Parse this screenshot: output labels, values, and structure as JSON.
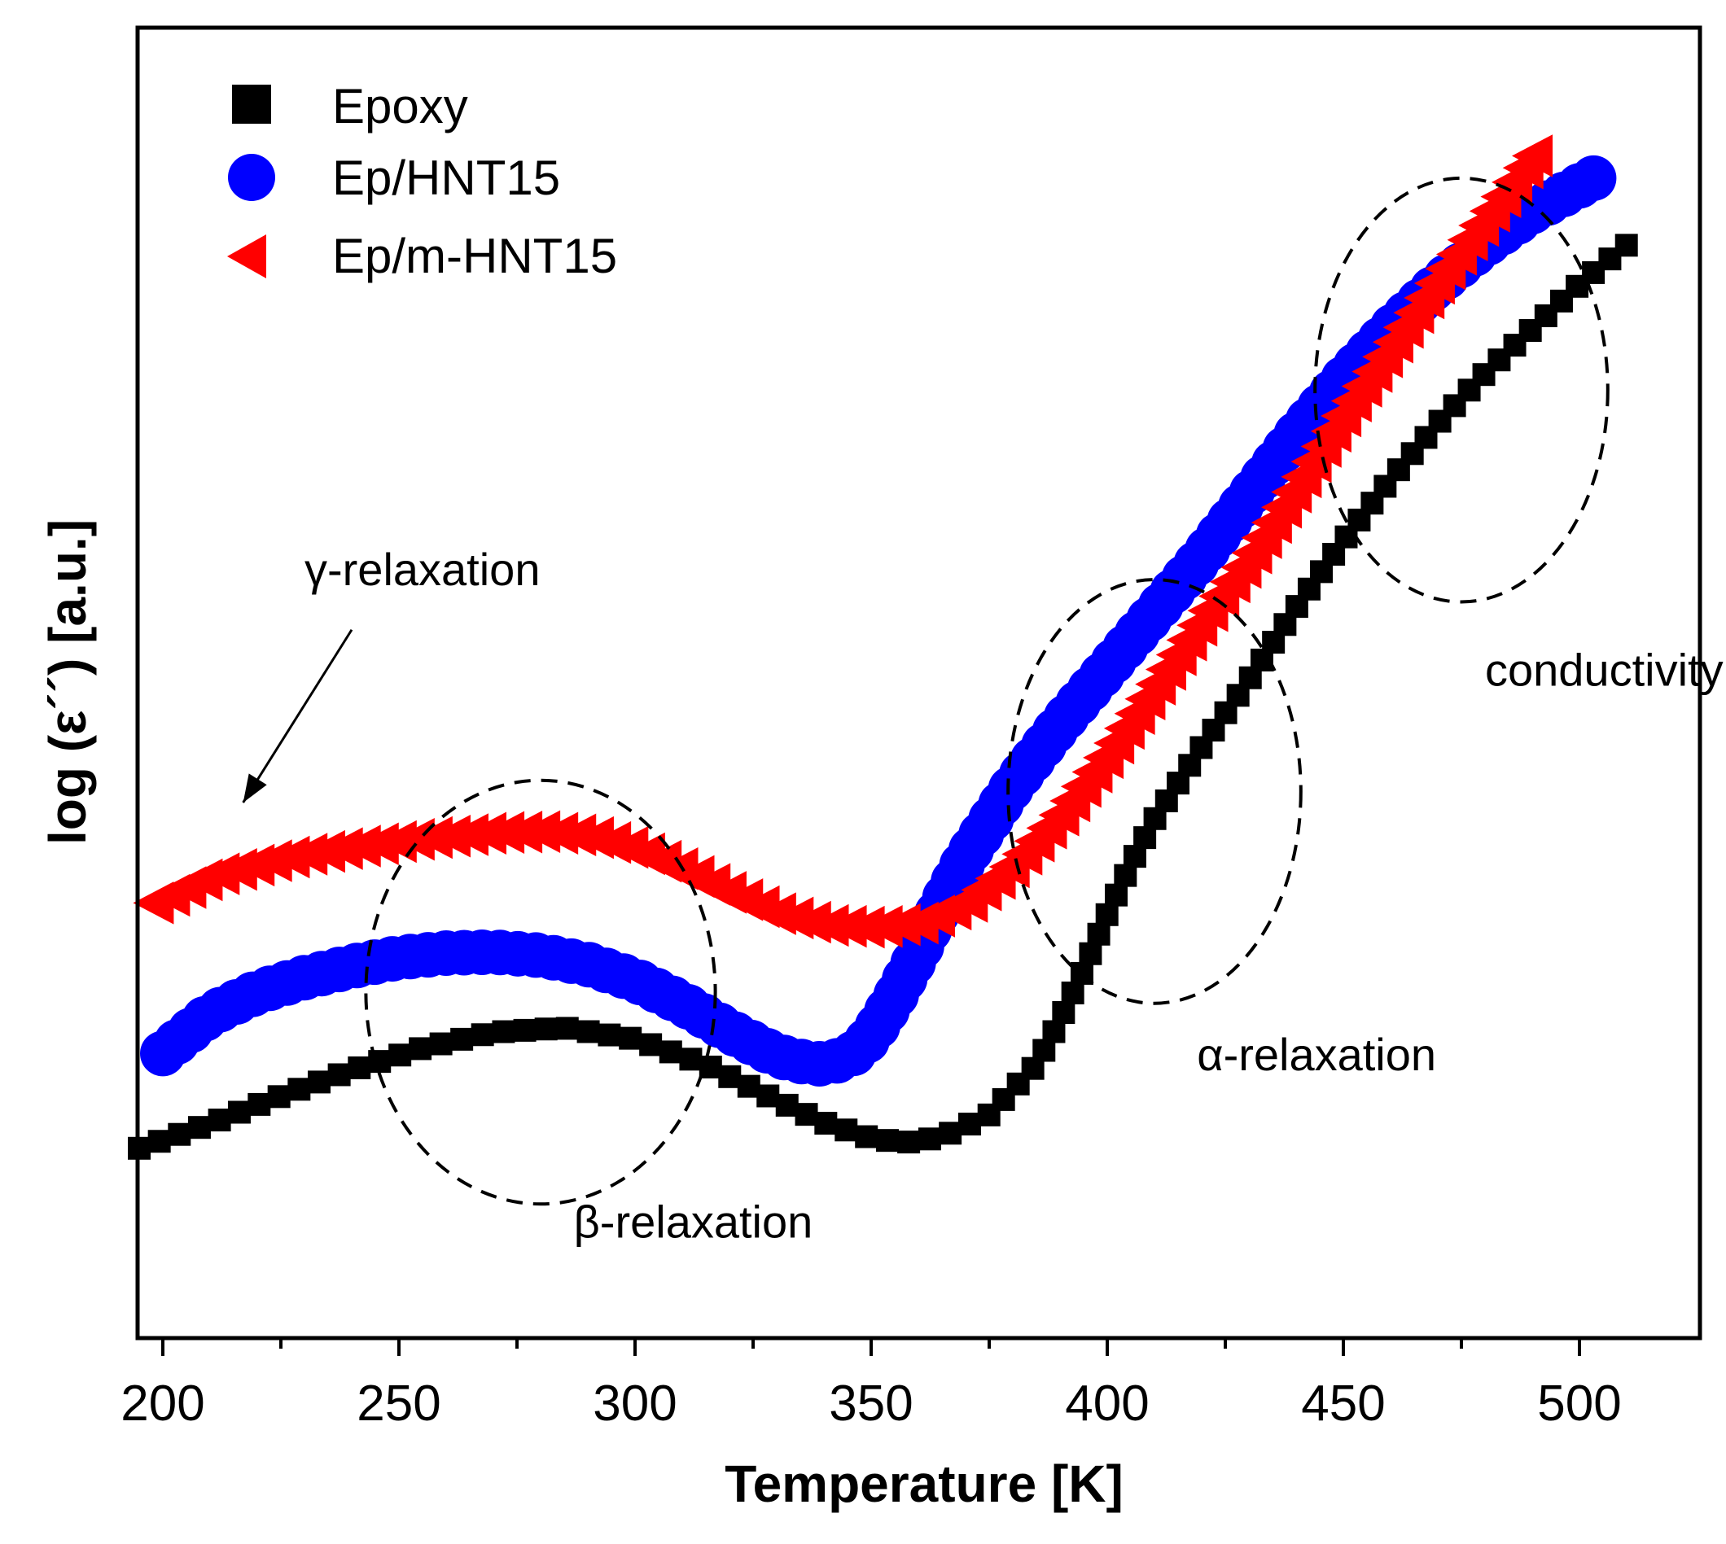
{
  "chart_data": {
    "type": "scatter",
    "title": "",
    "xlabel": "Temperature [K]",
    "ylabel": "log (ε´´) [a.u.]",
    "xlim": [
      195,
      525
    ],
    "ylim": [
      0,
      100
    ],
    "y_tick_labels_shown": false,
    "x_ticks": [
      200,
      250,
      300,
      350,
      400,
      450,
      500
    ],
    "x_tick_labels": [
      "200",
      "250",
      "300",
      "350",
      "400",
      "450",
      "500"
    ],
    "legend_position": "top-left",
    "colors": {
      "Epoxy": "#000000",
      "Ep/HNT15": "#0000ff",
      "Ep/m-HNT15": "#ff0000"
    },
    "series": [
      {
        "name": "Epoxy",
        "marker": "square",
        "x": [
          195,
          210,
          225,
          240,
          255,
          270,
          285,
          300,
          315,
          330,
          340,
          350,
          357,
          365,
          375,
          385,
          390,
          395,
          400,
          405,
          410,
          420,
          430,
          440,
          450,
          460,
          470,
          480,
          490,
          500,
          510
        ],
        "y": [
          16.0,
          18.2,
          20.7,
          23.0,
          25.0,
          26.4,
          26.8,
          25.8,
          23.5,
          20.3,
          18.3,
          16.9,
          16.5,
          17.0,
          19.0,
          23.5,
          27.5,
          32.0,
          37.0,
          41.5,
          45.5,
          52.0,
          58.0,
          64.5,
          70.5,
          76.0,
          81.0,
          85.5,
          89.5,
          93.5,
          97.0
        ]
      },
      {
        "name": "Ep/HNT15",
        "marker": "circle",
        "x": [
          200,
          210,
          220,
          230,
          240,
          250,
          260,
          270,
          280,
          290,
          300,
          310,
          320,
          330,
          338,
          345,
          350,
          355,
          360,
          365,
          370,
          380,
          390,
          400,
          410,
          420,
          430,
          440,
          450,
          460,
          470,
          480,
          490,
          503
        ],
        "y": [
          24.5,
          28.0,
          30.0,
          31.3,
          32.3,
          33.1,
          33.5,
          33.6,
          33.3,
          32.5,
          31.1,
          29.0,
          26.5,
          24.3,
          23.5,
          24.0,
          26.0,
          29.5,
          33.5,
          38.0,
          42.0,
          48.5,
          54.0,
          59.0,
          64.0,
          69.0,
          74.5,
          80.0,
          85.0,
          89.5,
          93.5,
          97.0,
          100.0,
          103.0
        ]
      },
      {
        "name": "Ep/m-HNT15",
        "marker": "triangle-left",
        "x": [
          198,
          210,
          225,
          240,
          255,
          270,
          280,
          290,
          300,
          310,
          320,
          330,
          340,
          350,
          360,
          370,
          380,
          390,
          400,
          410,
          420,
          430,
          440,
          450,
          460,
          470,
          480,
          490
        ],
        "y": [
          38.0,
          40.4,
          42.0,
          43.0,
          43.8,
          44.3,
          44.4,
          44.0,
          42.8,
          40.9,
          38.8,
          37.0,
          36.0,
          35.8,
          36.2,
          38.0,
          41.5,
          46.0,
          51.5,
          57.5,
          63.5,
          69.0,
          75.5,
          82.0,
          88.0,
          94.0,
          99.5,
          105.0
        ]
      }
    ],
    "annotations": [
      {
        "text": "γ-relaxation",
        "x": 230,
        "y": 66.5,
        "arrow_to": [
          217,
          47
        ]
      },
      {
        "text": "β-relaxation",
        "x": 287,
        "y": 8,
        "ellipse_center": [
          280,
          30
        ],
        "ellipse_radii": [
          37,
          19
        ]
      },
      {
        "text": "α-relaxation",
        "x": 419,
        "y": 23,
        "ellipse_center": [
          410,
          48
        ],
        "ellipse_radii": [
          31,
          19
        ]
      },
      {
        "text": "conductivity",
        "x": 480,
        "y": 57.5,
        "ellipse_center": [
          475,
          84
        ],
        "ellipse_radii": [
          31,
          19
        ]
      }
    ]
  }
}
